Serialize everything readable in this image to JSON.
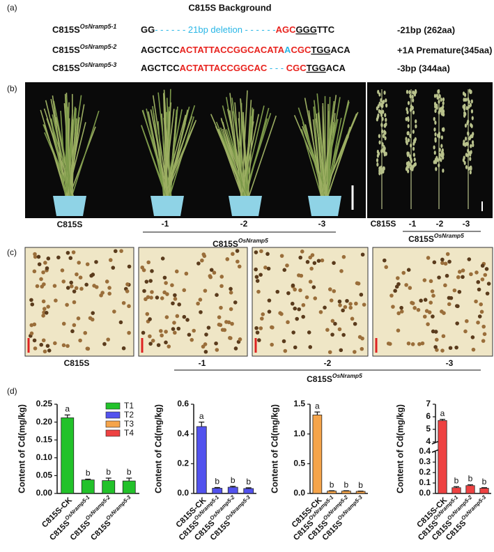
{
  "panel_labels": [
    "(a)",
    "(b)",
    "(c)",
    "(d)"
  ],
  "panel_a": {
    "title": "C815S Background",
    "rows": [
      {
        "label": "C815S",
        "sup": "OsNramp5-1",
        "result": "-21bp (262aa)",
        "segments": [
          {
            "text": "GG",
            "color": "#111111"
          },
          {
            "text": "- - - - - -  21bp deletion  - - - - - -",
            "color": "#29b6e6",
            "light": true
          },
          {
            "text": "AGC",
            "color": "#e8231e"
          },
          {
            "text": "GGG",
            "color": "#111111",
            "underline": true
          },
          {
            "text": "TTC",
            "color": "#111111"
          }
        ]
      },
      {
        "label": "C815S",
        "sup": "OsNramp5-2",
        "result": "+1A Premature(345aa)",
        "segments": [
          {
            "text": "AGCTCC",
            "color": "#111111"
          },
          {
            "text": "ACTATTACCGGCACATA",
            "color": "#e8231e"
          },
          {
            "text": "A",
            "color": "#29b6e6"
          },
          {
            "text": "CGC",
            "color": "#e8231e"
          },
          {
            "text": "TGG",
            "color": "#111111",
            "underline": true
          },
          {
            "text": "ACA",
            "color": "#111111"
          }
        ]
      },
      {
        "label": "C815S",
        "sup": "OsNramp5-3",
        "result": "-3bp (344aa)",
        "segments": [
          {
            "text": "AGCTCC",
            "color": "#111111"
          },
          {
            "text": "ACTATTACCGGCAC",
            "color": "#e8231e"
          },
          {
            "text": " - - - ",
            "color": "#29b6e6",
            "light": true
          },
          {
            "text": "CGC",
            "color": "#e8231e"
          },
          {
            "text": "TGG",
            "color": "#111111",
            "underline": true
          },
          {
            "text": "ACA",
            "color": "#111111"
          }
        ]
      }
    ]
  },
  "panel_b": {
    "left": {
      "control": "C815S",
      "lines": [
        "-1",
        "-2",
        "-3"
      ],
      "group": "C815S",
      "group_sup": "OsNramp5"
    },
    "right": {
      "control": "C815S",
      "lines": [
        "-1",
        "-2",
        "-3"
      ],
      "group": "C815S",
      "group_sup": "OsNramp5"
    }
  },
  "panel_c": {
    "control": "C815S",
    "lines": [
      "-1",
      "-2",
      "-3"
    ],
    "group": "C815S",
    "group_sup": "OsNramp5"
  },
  "chart_data": [
    {
      "type": "bar",
      "ylabel": "Content of Cd(mg/kg)",
      "categories": [
        "C815S-CK",
        "C815S",
        "C815S",
        "C815S"
      ],
      "category_superscripts": [
        null,
        "OsNramp5-1",
        "OsNramp5-2",
        "OsNramp5-3"
      ],
      "series": [
        {
          "name": "T1",
          "color": "#22c22a",
          "values": [
            0.212,
            0.038,
            0.036,
            0.035
          ],
          "errors": [
            0.008,
            0.002,
            0.007,
            0.008
          ]
        }
      ],
      "significance": [
        "a",
        "b",
        "b",
        "b"
      ],
      "ylim": [
        0,
        0.25
      ],
      "yticks": [
        {
          "value": 0,
          "label": "0.00"
        },
        {
          "value": 0.05,
          "label": "0.05"
        },
        {
          "value": 0.1,
          "label": "0.10"
        },
        {
          "value": 0.15,
          "label": "0.15"
        },
        {
          "value": 0.2,
          "label": "0.20"
        },
        {
          "value": 0.25,
          "label": "0.25"
        }
      ],
      "legend": "top-right"
    },
    {
      "type": "bar",
      "ylabel": "Content of Cd(mg/kg)",
      "categories": [
        "C815S-CK",
        "C815S",
        "C815S",
        "C815S"
      ],
      "category_superscripts": [
        null,
        "OsNramp5-1",
        "OsNramp5-2",
        "OsNramp5-3"
      ],
      "series": [
        {
          "name": "T2",
          "color": "#5252ee",
          "values": [
            0.45,
            0.035,
            0.042,
            0.033
          ],
          "errors": [
            0.03,
            0.005,
            0.006,
            0.005
          ]
        }
      ],
      "significance": [
        "a",
        "b",
        "b",
        "b"
      ],
      "ylim": [
        0,
        0.6
      ],
      "yticks": [
        {
          "value": 0,
          "label": "0.0"
        },
        0.2,
        0.4,
        0.6
      ]
    },
    {
      "type": "bar",
      "ylabel": "Content of Cd(mg/kg)",
      "categories": [
        "C815S-CK",
        "C815S",
        "C815S",
        "C815S"
      ],
      "category_superscripts": [
        null,
        "OsNramp5-1",
        "OsNramp5-2",
        "OsNramp5-3"
      ],
      "series": [
        {
          "name": "T3",
          "color": "#f5a44a",
          "values": [
            1.32,
            0.04,
            0.04,
            0.035
          ],
          "errors": [
            0.05,
            0.005,
            0.005,
            0.005
          ]
        }
      ],
      "significance": [
        "a",
        "b",
        "b",
        "b"
      ],
      "ylim": [
        0,
        1.5
      ],
      "yticks": [
        {
          "value": 0,
          "label": "0.0"
        },
        0.5,
        {
          "value": 1,
          "label": "1.0"
        },
        1.5
      ]
    },
    {
      "type": "bar",
      "ylabel": "Content of Cd(mg/kg)",
      "categories": [
        "C815S-CK",
        "C815S",
        "C815S",
        "C815S"
      ],
      "category_superscripts": [
        null,
        "OsNramp5-1",
        "OsNramp5-2",
        "OsNramp5-3"
      ],
      "series": [
        {
          "name": "T4",
          "color": "#ee4242",
          "values": [
            5.7,
            0.055,
            0.075,
            0.05
          ],
          "errors": [
            0.1,
            0.01,
            0.008,
            0.005
          ]
        }
      ],
      "significance": [
        "a",
        "b",
        "b",
        "b"
      ],
      "ylim": [
        0,
        7
      ],
      "axis_break": [
        0.4,
        4
      ],
      "yticks": [
        {
          "value": 0,
          "label": "0.0"
        },
        0.1,
        0.2,
        0.3,
        0.4,
        4,
        5,
        6,
        7
      ]
    }
  ]
}
